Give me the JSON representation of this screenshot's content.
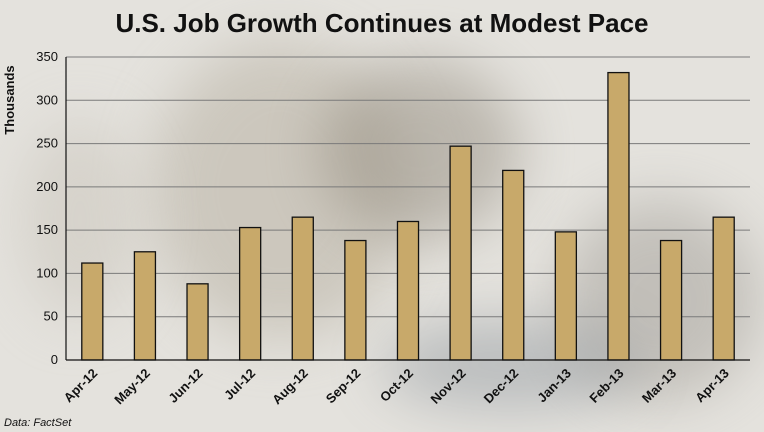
{
  "chart_data": {
    "type": "bar",
    "title": "U.S. Job Growth Continues at Modest Pace",
    "ylabel": "Thousands",
    "xlabel": "",
    "categories": [
      "Apr-12",
      "May-12",
      "Jun-12",
      "Jul-12",
      "Aug-12",
      "Sep-12",
      "Oct-12",
      "Nov-12",
      "Dec-12",
      "Jan-13",
      "Feb-13",
      "Mar-13",
      "Apr-13"
    ],
    "values": [
      112,
      125,
      88,
      153,
      165,
      138,
      160,
      247,
      219,
      148,
      332,
      138,
      165
    ],
    "ylim": [
      0,
      350
    ],
    "yticks": [
      0,
      50,
      100,
      150,
      200,
      250,
      300,
      350
    ],
    "grid": true,
    "bar_color": "#c8a96a",
    "bar_edge_color": "#111111",
    "source": "Data: FactSet"
  }
}
